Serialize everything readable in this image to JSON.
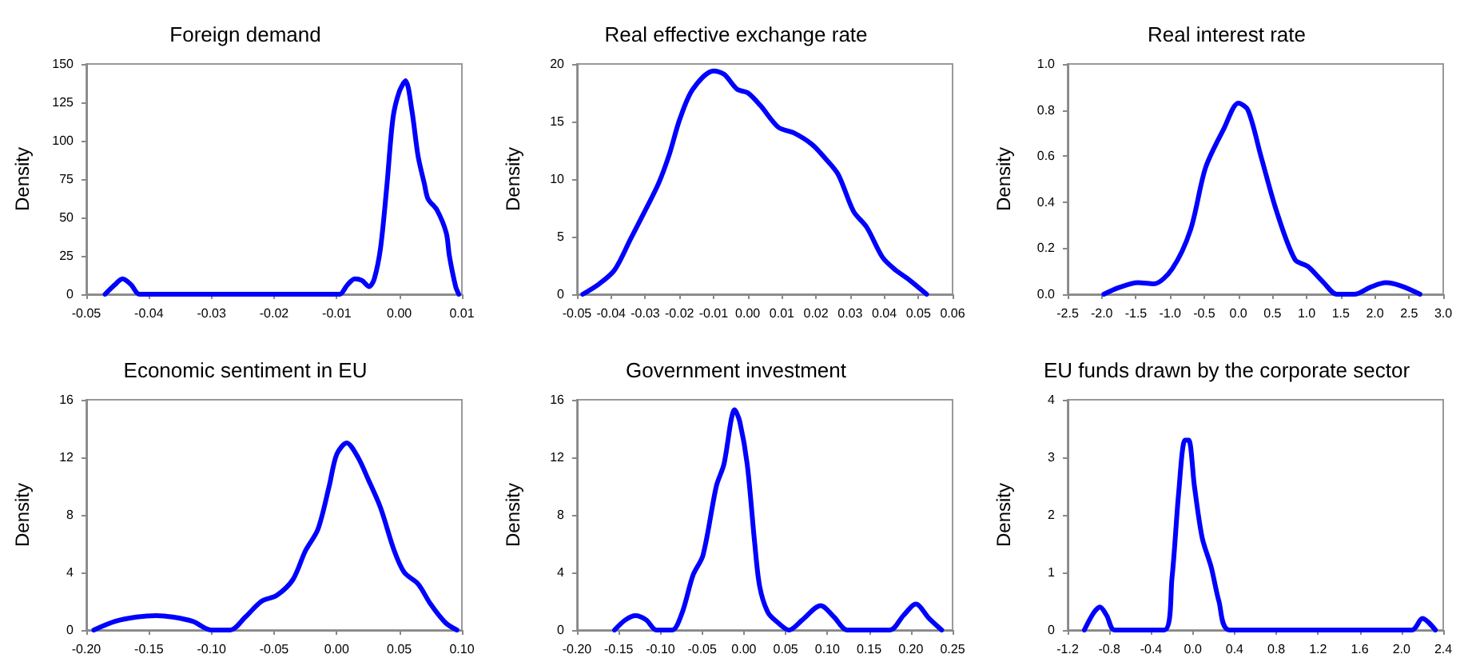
{
  "chart_data": [
    {
      "type": "line",
      "title": "Foreign demand",
      "ylabel": "Density",
      "color": "#0000ff",
      "grid": false,
      "marker": "none",
      "line_style": "solid",
      "x": [
        -0.047,
        -0.0455,
        -0.0442,
        -0.0428,
        -0.0415,
        -0.01,
        -0.0095,
        -0.0083,
        -0.0071,
        -0.006,
        -0.0048,
        -0.004,
        -0.003,
        -0.002,
        -0.001,
        0.0,
        0.001,
        0.002,
        0.003,
        0.004,
        0.0046,
        0.006,
        0.0075,
        0.008,
        0.009,
        0.0095
      ],
      "values": [
        0,
        6,
        10,
        6,
        0,
        0,
        0,
        6,
        10,
        9,
        5,
        10,
        30,
        70,
        115,
        132,
        139,
        120,
        90,
        72,
        62,
        55,
        40,
        25,
        5,
        0
      ],
      "xlim": [
        -0.05,
        0.01
      ],
      "xticks": [
        {
          "value": -0.05,
          "label": "-0.05"
        },
        {
          "value": -0.04,
          "label": "-0.04"
        },
        {
          "value": -0.03,
          "label": "-0.03"
        },
        {
          "value": -0.02,
          "label": "-0.02"
        },
        {
          "value": -0.01,
          "label": "-0.01"
        },
        {
          "value": 0,
          "label": "0.00"
        },
        {
          "value": 0.01,
          "label": "0.01"
        }
      ],
      "ylim": [
        0,
        150
      ],
      "yticks": [
        0,
        25,
        50,
        75,
        100,
        125,
        150
      ]
    },
    {
      "type": "line",
      "title": "Real effective exchange rate",
      "ylabel": "Density",
      "color": "#0000ff",
      "grid": false,
      "marker": "none",
      "line_style": "solid",
      "x": [
        -0.0483,
        -0.0435,
        -0.039,
        -0.0343,
        -0.0298,
        -0.026,
        -0.0229,
        -0.0199,
        -0.0161,
        -0.01,
        -0.0069,
        -0.0031,
        0.0,
        0.0037,
        0.009,
        0.0136,
        0.0189,
        0.0227,
        0.0265,
        0.031,
        0.0349,
        0.0395,
        0.0433,
        0.0471,
        0.0524
      ],
      "values": [
        0,
        0.9,
        2.1,
        4.8,
        7.4,
        9.7,
        12.2,
        15.2,
        17.8,
        19.4,
        19.1,
        17.8,
        17.5,
        16.4,
        14.5,
        14.0,
        13.0,
        11.8,
        10.4,
        7.2,
        5.8,
        3.2,
        2.1,
        1.3,
        0
      ],
      "xlim": [
        -0.05,
        0.06
      ],
      "xticks": [
        {
          "value": -0.05,
          "label": "-0.05"
        },
        {
          "value": -0.04,
          "label": "-0.04"
        },
        {
          "value": -0.03,
          "label": "-0.03"
        },
        {
          "value": -0.02,
          "label": "-0.02"
        },
        {
          "value": -0.01,
          "label": "-0.01"
        },
        {
          "value": 0,
          "label": "0.00"
        },
        {
          "value": 0.01,
          "label": "0.01"
        },
        {
          "value": 0.02,
          "label": "0.02"
        },
        {
          "value": 0.03,
          "label": "0.03"
        },
        {
          "value": 0.04,
          "label": "0.04"
        },
        {
          "value": 0.05,
          "label": "0.05"
        },
        {
          "value": 0.06,
          "label": "0.06"
        }
      ],
      "ylim": [
        0,
        20
      ],
      "yticks": [
        0,
        5,
        10,
        15,
        20
      ]
    },
    {
      "type": "line",
      "title": "Real interest rate",
      "ylabel": "Density",
      "color": "#0000ff",
      "grid": false,
      "marker": "none",
      "line_style": "solid",
      "x": [
        -1.97,
        -1.74,
        -1.47,
        -1.24,
        -0.97,
        -0.7,
        -0.48,
        -0.21,
        0.0,
        0.14,
        0.33,
        0.56,
        0.83,
        1.02,
        1.25,
        1.44,
        1.7,
        1.93,
        2.16,
        2.39,
        2.66
      ],
      "values": [
        0,
        0.03,
        0.05,
        0.045,
        0.11,
        0.28,
        0.55,
        0.72,
        0.83,
        0.8,
        0.6,
        0.36,
        0.15,
        0.12,
        0.05,
        0,
        0,
        0.03,
        0.05,
        0.035,
        0
      ],
      "xlim": [
        -2.5,
        3.0
      ],
      "xticks": [
        {
          "value": -2.5,
          "label": "-2.5"
        },
        {
          "value": -2,
          "label": "-2.0"
        },
        {
          "value": -1.5,
          "label": "-1.5"
        },
        {
          "value": -1,
          "label": "-1.0"
        },
        {
          "value": -0.5,
          "label": "-0.5"
        },
        {
          "value": 0,
          "label": "0.0"
        },
        {
          "value": 0.5,
          "label": "0.5"
        },
        {
          "value": 1,
          "label": "1.0"
        },
        {
          "value": 1.5,
          "label": "1.5"
        },
        {
          "value": 2,
          "label": "2.0"
        },
        {
          "value": 2.5,
          "label": "2.5"
        },
        {
          "value": 3,
          "label": "3.0"
        }
      ],
      "ylim": [
        0,
        1.0
      ],
      "yticks": [
        {
          "value": 0,
          "label": "0.0"
        },
        {
          "value": 0.2,
          "label": "0.2"
        },
        {
          "value": 0.4,
          "label": "0.4"
        },
        {
          "value": 0.6,
          "label": "0.6"
        },
        {
          "value": 0.8,
          "label": "0.8"
        },
        {
          "value": 1,
          "label": "1.0"
        }
      ]
    },
    {
      "type": "line",
      "title": "Economic sentiment in EU",
      "ylabel": "Density",
      "color": "#0000ff",
      "grid": false,
      "marker": "none",
      "line_style": "solid",
      "x": [
        -0.194,
        -0.177,
        -0.16,
        -0.144,
        -0.131,
        -0.115,
        -0.1,
        -0.085,
        -0.073,
        -0.06,
        -0.048,
        -0.035,
        -0.025,
        -0.015,
        -0.006,
        0.0,
        0.008,
        0.017,
        0.025,
        0.035,
        0.046,
        0.054,
        0.065,
        0.075,
        0.087,
        0.096
      ],
      "values": [
        0,
        0.6,
        0.9,
        1.0,
        0.9,
        0.6,
        0,
        0,
        0.9,
        2.0,
        2.4,
        3.5,
        5.5,
        7.0,
        10.0,
        12.2,
        13.0,
        12.0,
        10.5,
        8.5,
        5.5,
        4.0,
        3.2,
        1.8,
        0.5,
        0
      ],
      "xlim": [
        -0.2,
        0.1
      ],
      "xticks": [
        {
          "value": -0.2,
          "label": "-0.20"
        },
        {
          "value": -0.15,
          "label": "-0.15"
        },
        {
          "value": -0.1,
          "label": "-0.10"
        },
        {
          "value": -0.05,
          "label": "-0.05"
        },
        {
          "value": 0,
          "label": "0.00"
        },
        {
          "value": 0.05,
          "label": "0.05"
        },
        {
          "value": 0.1,
          "label": "0.10"
        }
      ],
      "ylim": [
        0,
        16
      ],
      "yticks": [
        0,
        4,
        8,
        12,
        16
      ]
    },
    {
      "type": "line",
      "title": "Government investment",
      "ylabel": "Density",
      "color": "#0000ff",
      "grid": false,
      "marker": "none",
      "line_style": "solid",
      "x": [
        -0.155,
        -0.142,
        -0.13,
        -0.117,
        -0.105,
        -0.086,
        -0.074,
        -0.061,
        -0.049,
        -0.033,
        -0.024,
        -0.011,
        -0.005,
        0.004,
        0.013,
        0.019,
        0.029,
        0.041,
        0.054,
        0.07,
        0.092,
        0.108,
        0.124,
        0.175,
        0.191,
        0.206,
        0.222,
        0.237
      ],
      "values": [
        0,
        0.7,
        1.0,
        0.7,
        0,
        0,
        1.2,
        3.8,
        5.2,
        10.0,
        11.5,
        15.3,
        14.5,
        11.5,
        6.0,
        3.0,
        1.2,
        0.5,
        0,
        0.7,
        1.7,
        0.9,
        0,
        0,
        1.0,
        1.8,
        0.8,
        0
      ],
      "xlim": [
        -0.2,
        0.25
      ],
      "xticks": [
        {
          "value": -0.2,
          "label": "-0.20"
        },
        {
          "value": -0.15,
          "label": "-0.15"
        },
        {
          "value": -0.1,
          "label": "-0.10"
        },
        {
          "value": -0.05,
          "label": "-0.05"
        },
        {
          "value": 0,
          "label": "0.00"
        },
        {
          "value": 0.05,
          "label": "0.05"
        },
        {
          "value": 0.1,
          "label": "0.10"
        },
        {
          "value": 0.15,
          "label": "0.15"
        },
        {
          "value": 0.2,
          "label": "0.20"
        },
        {
          "value": 0.25,
          "label": "0.25"
        }
      ],
      "ylim": [
        0,
        16
      ],
      "yticks": [
        0,
        4,
        8,
        12,
        16
      ]
    },
    {
      "type": "line",
      "title": "EU funds drawn by the corporate sector",
      "ylabel": "Density",
      "color": "#0000ff",
      "grid": false,
      "marker": "none",
      "line_style": "solid",
      "x": [
        -1.04,
        -0.95,
        -0.89,
        -0.825,
        -0.75,
        -0.275,
        -0.2,
        -0.135,
        -0.075,
        -0.04,
        0.015,
        0.09,
        0.175,
        0.25,
        0.35,
        2.1,
        2.2,
        2.325
      ],
      "values": [
        0,
        0.3,
        0.4,
        0.25,
        0,
        0,
        0.9,
        2.4,
        3.3,
        3.3,
        2.5,
        1.6,
        1.1,
        0.5,
        0,
        0,
        0.2,
        0
      ],
      "xlim": [
        -1.2,
        2.4
      ],
      "xticks": [
        {
          "value": -1.2,
          "label": "-1.2"
        },
        {
          "value": -0.8,
          "label": "-0.8"
        },
        {
          "value": -0.4,
          "label": "-0.4"
        },
        {
          "value": 0,
          "label": "0.0"
        },
        {
          "value": 0.4,
          "label": "0.4"
        },
        {
          "value": 0.8,
          "label": "0.8"
        },
        {
          "value": 1.2,
          "label": "1.2"
        },
        {
          "value": 1.6,
          "label": "1.6"
        },
        {
          "value": 2,
          "label": "2.0"
        },
        {
          "value": 2.4,
          "label": "2.4"
        }
      ],
      "ylim": [
        0,
        4
      ],
      "yticks": [
        0,
        1,
        2,
        3,
        4
      ]
    }
  ]
}
